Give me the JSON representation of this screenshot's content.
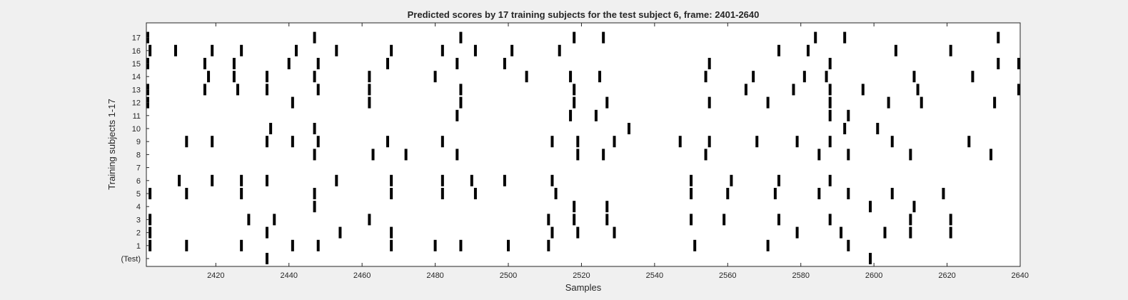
{
  "chart_data": {
    "type": "raster",
    "title": "Predicted scores by 17 training subjects for the test subject 6, frame: 2401-2640",
    "xlabel": "Samples",
    "ylabel": "Training subjects 1-17",
    "xlim": [
      2401,
      2640
    ],
    "x_ticks": [
      2420,
      2440,
      2460,
      2480,
      2500,
      2520,
      2540,
      2560,
      2580,
      2600,
      2620,
      2640
    ],
    "x_tick_labels": [
      "2420",
      "2440",
      "2460",
      "2480",
      "2500",
      "2520",
      "2540",
      "2560",
      "2580",
      "2600",
      "2620",
      "2640"
    ],
    "rows": [
      {
        "label": "(Test)",
        "events": [
          2434,
          2599
        ]
      },
      {
        "label": "1",
        "events": [
          2402,
          2412,
          2427,
          2441,
          2448,
          2468,
          2480,
          2487,
          2500,
          2511,
          2551,
          2571,
          2593
        ]
      },
      {
        "label": "2",
        "events": [
          2402,
          2434,
          2454,
          2468,
          2512,
          2519,
          2529,
          2579,
          2591,
          2603,
          2610,
          2621
        ]
      },
      {
        "label": "3",
        "events": [
          2402,
          2429,
          2436,
          2462,
          2511,
          2518,
          2527,
          2550,
          2559,
          2574,
          2588,
          2610,
          2621
        ]
      },
      {
        "label": "4",
        "events": [
          2447,
          2518,
          2527,
          2599,
          2611
        ]
      },
      {
        "label": "5",
        "events": [
          2402,
          2412,
          2427,
          2447,
          2468,
          2482,
          2491,
          2513,
          2550,
          2560,
          2573,
          2585,
          2593,
          2605,
          2619
        ]
      },
      {
        "label": "6",
        "events": [
          2410,
          2419,
          2427,
          2434,
          2453,
          2468,
          2482,
          2490,
          2499,
          2512,
          2550,
          2561,
          2574,
          2588
        ]
      },
      {
        "label": "7",
        "events": []
      },
      {
        "label": "8",
        "events": [
          2447,
          2463,
          2472,
          2486,
          2519,
          2526,
          2554,
          2585,
          2593,
          2610,
          2632
        ]
      },
      {
        "label": "9",
        "events": [
          2412,
          2419,
          2434,
          2441,
          2448,
          2467,
          2482,
          2512,
          2519,
          2529,
          2547,
          2555,
          2568,
          2579,
          2588,
          2605,
          2626
        ]
      },
      {
        "label": "10",
        "events": [
          2435,
          2447,
          2533,
          2592,
          2601
        ]
      },
      {
        "label": "11",
        "events": [
          2486,
          2517,
          2524,
          2588,
          2593
        ]
      },
      {
        "label": "12",
        "events": [
          2401,
          2441,
          2462,
          2487,
          2518,
          2527,
          2555,
          2571,
          2588,
          2604,
          2613,
          2633
        ]
      },
      {
        "label": "13",
        "events": [
          2401,
          2417,
          2426,
          2434,
          2448,
          2462,
          2487,
          2518,
          2565,
          2578,
          2588,
          2597,
          2612,
          2640
        ]
      },
      {
        "label": "14",
        "events": [
          2418,
          2425,
          2434,
          2447,
          2462,
          2480,
          2505,
          2517,
          2525,
          2554,
          2567,
          2581,
          2587,
          2611,
          2627
        ]
      },
      {
        "label": "15",
        "events": [
          2401,
          2417,
          2425,
          2440,
          2448,
          2467,
          2486,
          2499,
          2555,
          2588,
          2634,
          2640
        ]
      },
      {
        "label": "16",
        "events": [
          2402,
          2409,
          2419,
          2427,
          2442,
          2453,
          2468,
          2482,
          2491,
          2501,
          2514,
          2574,
          2582,
          2606,
          2621
        ]
      },
      {
        "label": "17",
        "events": [
          2401,
          2447,
          2487,
          2518,
          2526,
          2584,
          2592,
          2634
        ]
      }
    ]
  }
}
